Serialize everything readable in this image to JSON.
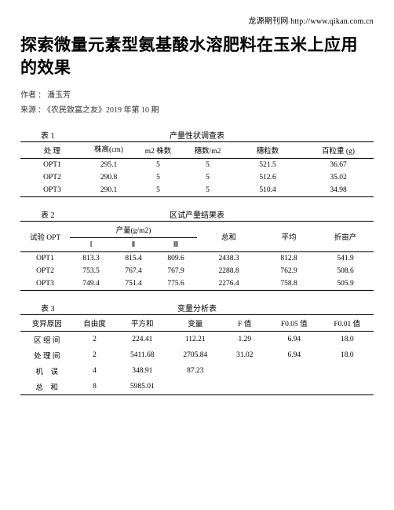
{
  "topsite": {
    "label": "龙源期刊网",
    "url": "http://www.qikan.com.cn"
  },
  "title": "探索微量元素型氨基酸水溶肥料在玉米上应用的效果",
  "meta": {
    "author_label": "作者",
    "author": "潘玉芳",
    "source_label": "来源",
    "source_book": "《农民致富之友》",
    "source_issue": "2019 年第 10 期"
  },
  "table1": {
    "label": "表 1",
    "title": "产量性状调查表",
    "headers": [
      "处 理",
      "株高(cm)",
      "m2 株数",
      "穗数/m2",
      "穗粒数",
      "百粒重 (g)"
    ],
    "rows": [
      [
        "OPT1",
        "295.1",
        "5",
        "5",
        "521.5",
        "36.67"
      ],
      [
        "OPT2",
        "290.8",
        "5",
        "5",
        "512.6",
        "35.02"
      ],
      [
        "OPT3",
        "290.1",
        "5",
        "5",
        "510.4",
        "34.98"
      ]
    ]
  },
  "table2": {
    "label": "表 2",
    "title": "区试产量结果表",
    "group_headers": {
      "col0": "试验 OPT",
      "group": "产量(g/m2)",
      "sum": "总和",
      "avg": "平均",
      "fold": "折亩产"
    },
    "sub_headers": [
      "Ⅰ",
      "Ⅱ",
      "Ⅲ"
    ],
    "rows": [
      [
        "OPT1",
        "813.3",
        "815.4",
        "809.6",
        "2438.3",
        "812.8",
        "541.9"
      ],
      [
        "OPT2",
        "753.5",
        "767.4",
        "767.9",
        "2288.8",
        "762.9",
        "508.6"
      ],
      [
        "OPT3",
        "749.4",
        "751.4",
        "775.6",
        "2276.4",
        "758.8",
        "505.9"
      ]
    ]
  },
  "table3": {
    "label": "表 3",
    "title": "变量分析表",
    "headers": [
      "变异原因",
      "自由度",
      "平方和",
      "变量",
      "F 值",
      "F0.05 值",
      "F0.01 值"
    ],
    "rows": [
      [
        "区 组 间",
        "2",
        "224.41",
        "112.21",
        "1.29",
        "6.94",
        "18.0"
      ],
      [
        "处 理 间",
        "2",
        "5411.68",
        "2705.84",
        "31.02",
        "6.94",
        "18.0"
      ],
      [
        "机　误",
        "4",
        "348.91",
        "87.23",
        "",
        "",
        ""
      ],
      [
        "总　和",
        "8",
        "5985.01",
        "",
        "",
        "",
        ""
      ]
    ]
  }
}
